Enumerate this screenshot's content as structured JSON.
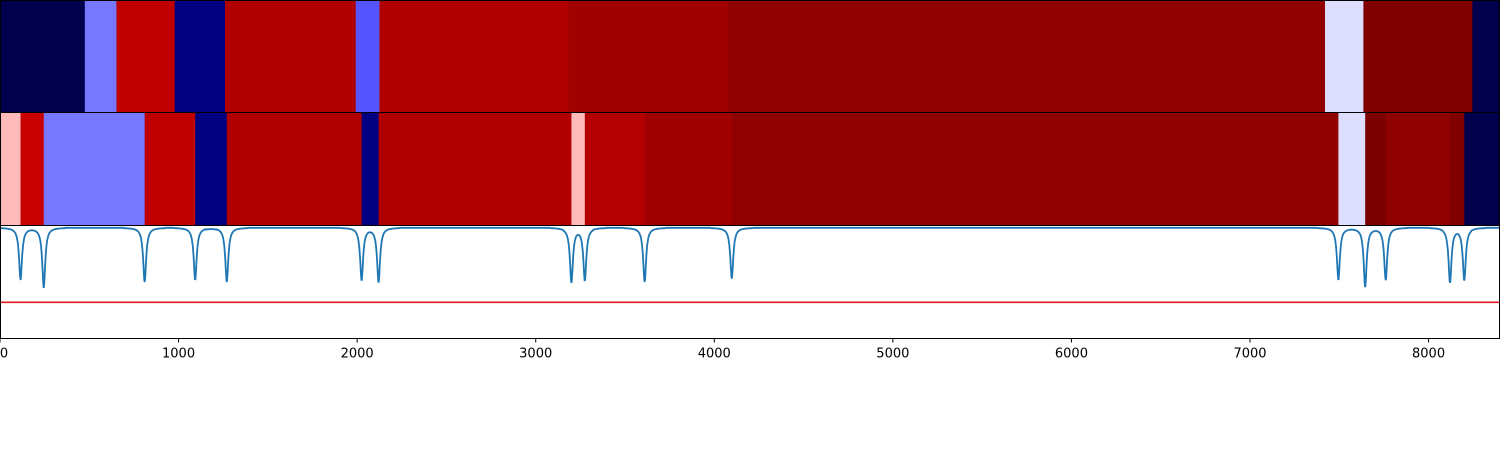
{
  "chart_data": {
    "type": "heatmap",
    "title": "",
    "xlabel": "",
    "ylabel": "",
    "xlim": [
      0,
      8400
    ],
    "x_ticks": [
      0,
      1000,
      2000,
      3000,
      4000,
      5000,
      6000,
      7000,
      8000
    ],
    "x_tick_labels": [
      "0",
      "1000",
      "2000",
      "3000",
      "4000",
      "5000",
      "6000",
      "7000",
      "8000"
    ],
    "grid": false,
    "legend": "none",
    "segmentation_tracks": [
      {
        "segments": [
          {
            "start": 0,
            "end": 475,
            "color": "#00004c"
          },
          {
            "start": 475,
            "end": 652,
            "color": "#7777ff"
          },
          {
            "start": 652,
            "end": 978,
            "color": "#c00000"
          },
          {
            "start": 978,
            "end": 1260,
            "color": "#000080"
          },
          {
            "start": 1260,
            "end": 1992,
            "color": "#b00000"
          },
          {
            "start": 1992,
            "end": 2125,
            "color": "#5555ff"
          },
          {
            "start": 2125,
            "end": 3185,
            "color": "#b00000"
          },
          {
            "start": 3185,
            "end": 4078,
            "color": "#a00000"
          },
          {
            "start": 4078,
            "end": 7420,
            "color": "#8f0000"
          },
          {
            "start": 7420,
            "end": 7635,
            "color": "#ddddff"
          },
          {
            "start": 7635,
            "end": 8245,
            "color": "#800000"
          },
          {
            "start": 8245,
            "end": 8400,
            "color": "#00004c"
          }
        ]
      },
      {
        "segments": [
          {
            "start": 0,
            "end": 115,
            "color": "#ffbbbb"
          },
          {
            "start": 115,
            "end": 245,
            "color": "#c80000"
          },
          {
            "start": 245,
            "end": 810,
            "color": "#7777ff"
          },
          {
            "start": 810,
            "end": 1093,
            "color": "#c00000"
          },
          {
            "start": 1093,
            "end": 1270,
            "color": "#000080"
          },
          {
            "start": 1270,
            "end": 2025,
            "color": "#b00000"
          },
          {
            "start": 2025,
            "end": 2120,
            "color": "#000080"
          },
          {
            "start": 2120,
            "end": 3200,
            "color": "#b00000"
          },
          {
            "start": 3200,
            "end": 3275,
            "color": "#ffbbbb"
          },
          {
            "start": 3275,
            "end": 3610,
            "color": "#b40000"
          },
          {
            "start": 3610,
            "end": 4098,
            "color": "#a00000"
          },
          {
            "start": 4098,
            "end": 7495,
            "color": "#8f0000"
          },
          {
            "start": 7495,
            "end": 7645,
            "color": "#ddddff"
          },
          {
            "start": 7645,
            "end": 7760,
            "color": "#7a0000"
          },
          {
            "start": 7760,
            "end": 8120,
            "color": "#8f0000"
          },
          {
            "start": 8120,
            "end": 8200,
            "color": "#800000"
          },
          {
            "start": 8200,
            "end": 8400,
            "color": "#00004c"
          }
        ]
      }
    ],
    "signal_panel": {
      "line_color": "#1f77b4",
      "threshold_color": "#e41a1c",
      "ylim": [
        0,
        1
      ],
      "baseline": 0.98,
      "threshold": 0.32,
      "dips": [
        {
          "x": 115,
          "y": 0.52
        },
        {
          "x": 245,
          "y": 0.45
        },
        {
          "x": 810,
          "y": 0.5
        },
        {
          "x": 1093,
          "y": 0.52
        },
        {
          "x": 1270,
          "y": 0.5
        },
        {
          "x": 2025,
          "y": 0.52
        },
        {
          "x": 2120,
          "y": 0.5
        },
        {
          "x": 3200,
          "y": 0.5
        },
        {
          "x": 3275,
          "y": 0.52
        },
        {
          "x": 3610,
          "y": 0.5
        },
        {
          "x": 4098,
          "y": 0.53
        },
        {
          "x": 7495,
          "y": 0.52
        },
        {
          "x": 7645,
          "y": 0.46
        },
        {
          "x": 7760,
          "y": 0.52
        },
        {
          "x": 8120,
          "y": 0.5
        },
        {
          "x": 8200,
          "y": 0.52
        }
      ]
    }
  }
}
